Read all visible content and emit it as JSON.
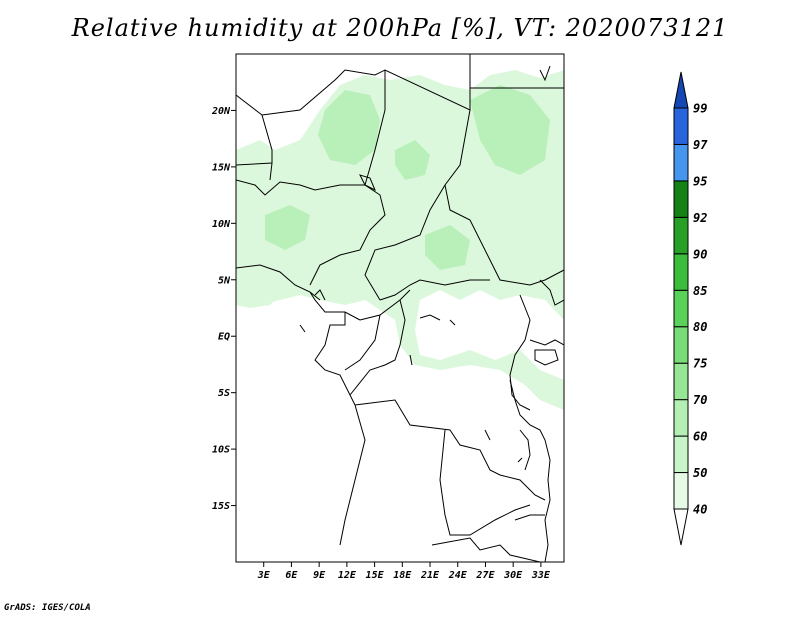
{
  "title": "Relative humidity at 200hPa [%], VT: 2020073121",
  "footer": "GrADS: IGES/COLA",
  "map": {
    "lon_range": [
      0,
      35.5
    ],
    "lat_range": [
      -20,
      25
    ],
    "lat_ticks": [
      {
        "value": 20,
        "label": "20N"
      },
      {
        "value": 15,
        "label": "15N"
      },
      {
        "value": 10,
        "label": "10N"
      },
      {
        "value": 5,
        "label": "5N"
      },
      {
        "value": 0,
        "label": "EQ"
      },
      {
        "value": -5,
        "label": "5S"
      },
      {
        "value": -10,
        "label": "10S"
      },
      {
        "value": -15,
        "label": "15S"
      }
    ],
    "lon_ticks": [
      {
        "value": 3,
        "label": "3E"
      },
      {
        "value": 6,
        "label": "6E"
      },
      {
        "value": 9,
        "label": "9E"
      },
      {
        "value": 12,
        "label": "12E"
      },
      {
        "value": 15,
        "label": "15E"
      },
      {
        "value": 18,
        "label": "18E"
      },
      {
        "value": 21,
        "label": "21E"
      },
      {
        "value": 24,
        "label": "24E"
      },
      {
        "value": 27,
        "label": "27E"
      },
      {
        "value": 30,
        "label": "30E"
      },
      {
        "value": 33,
        "label": "33E"
      }
    ]
  },
  "colorbar": {
    "levels": [
      "40",
      "50",
      "60",
      "70",
      "75",
      "80",
      "85",
      "90",
      "92",
      "95",
      "97",
      "99"
    ],
    "colors": [
      "#ffffff",
      "#e6fae6",
      "#c8f5c8",
      "#b4f0b4",
      "#96e696",
      "#78dc78",
      "#5ad25a",
      "#3cbe3c",
      "#28a028",
      "#148214",
      "#4696f0",
      "#2864dc",
      "#1446b4"
    ]
  },
  "colors": {
    "light_green": "#dcf8dc",
    "mid_green": "#b9efb9"
  }
}
